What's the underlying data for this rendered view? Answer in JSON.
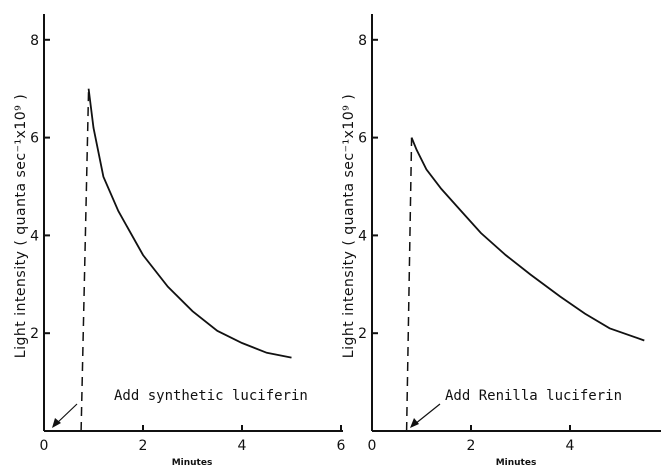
{
  "chart_data": [
    {
      "type": "line",
      "title": "",
      "xlabel": "Minutes",
      "ylabel": "Light intensity ( quanta sec⁻¹x10⁹ )",
      "xlim": [
        0,
        6
      ],
      "ylim": [
        0,
        8.6
      ],
      "x_ticks": [
        0,
        2,
        4,
        6
      ],
      "x_tick_labels": [
        "0",
        "2",
        "4",
        "6"
      ],
      "y_ticks": [
        2,
        4,
        6,
        8
      ],
      "y_tick_labels": [
        "2",
        "4",
        "6",
        "8"
      ],
      "series": [
        {
          "style": "dashed",
          "x": [
            0.75,
            0.9
          ],
          "y": [
            0,
            7.0
          ]
        },
        {
          "style": "solid",
          "x": [
            0.9,
            1.0,
            1.2,
            1.5,
            2.0,
            2.5,
            3.0,
            3.5,
            4.0,
            4.5,
            5.0
          ],
          "y": [
            7.0,
            6.2,
            5.2,
            4.5,
            3.6,
            2.95,
            2.45,
            2.05,
            1.8,
            1.6,
            1.5
          ]
        }
      ],
      "annotations": [
        {
          "text": "Add synthetic luciferin",
          "x": 0.75,
          "y": 0
        }
      ]
    },
    {
      "type": "line",
      "title": "",
      "xlabel": "Minutes",
      "ylabel": "Light intensity ( quanta sec⁻¹x10⁹ )",
      "xlim": [
        0,
        5.7
      ],
      "ylim": [
        0,
        8.6
      ],
      "x_ticks": [
        0,
        2,
        4
      ],
      "x_tick_labels": [
        "0",
        "2",
        "4"
      ],
      "y_ticks": [
        2,
        4,
        6,
        8
      ],
      "y_tick_labels": [
        "2",
        "4",
        "6",
        "8"
      ],
      "series": [
        {
          "style": "dashed",
          "x": [
            0.7,
            0.8
          ],
          "y": [
            0,
            6.0
          ]
        },
        {
          "style": "solid",
          "x": [
            0.8,
            0.9,
            1.1,
            1.4,
            1.8,
            2.2,
            2.7,
            3.2,
            3.8,
            4.3,
            4.8,
            5.5
          ],
          "y": [
            6.0,
            5.75,
            5.35,
            4.95,
            4.5,
            4.05,
            3.6,
            3.2,
            2.75,
            2.4,
            2.1,
            1.85
          ]
        }
      ],
      "annotations": [
        {
          "text": "Add Renilla luciferin",
          "x": 0.7,
          "y": 0
        }
      ]
    }
  ]
}
